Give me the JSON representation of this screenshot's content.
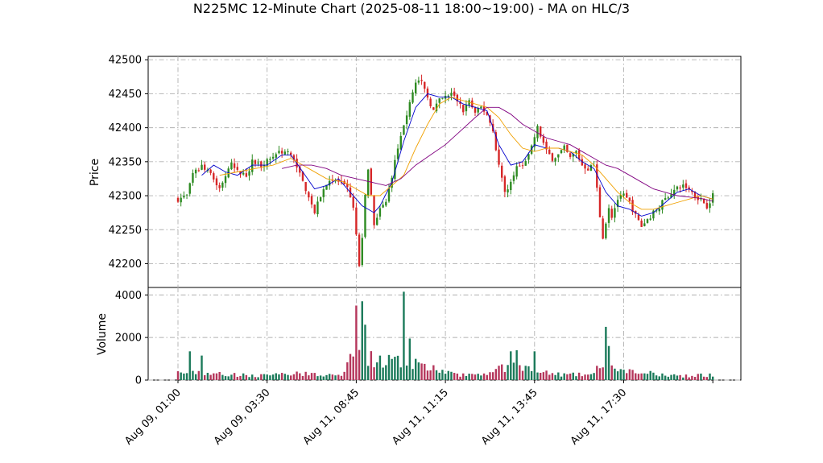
{
  "chart_data": {
    "type": "candlestick",
    "title": "N225MC 12-Minute Chart (2025-08-11 18:00~19:00) - MA on HLC/3",
    "price_ylabel": "Price",
    "volume_ylabel": "Volume",
    "price_ylim": [
      42165,
      42505
    ],
    "price_yticks": [
      42200,
      42250,
      42300,
      42350,
      42400,
      42450,
      42500
    ],
    "volume_ylim": [
      0,
      4350
    ],
    "volume_yticks": [
      0,
      2000,
      4000
    ],
    "x_ticks": [
      {
        "index": 0,
        "label": "Aug 09, 01:00"
      },
      {
        "index": 30,
        "label": "Aug 09, 03:30"
      },
      {
        "index": 60,
        "label": "Aug 11, 08:45"
      },
      {
        "index": 90,
        "label": "Aug 11, 11:15"
      },
      {
        "index": 120,
        "label": "Aug 11, 13:45"
      },
      {
        "index": 150,
        "label": "Aug 11, 17:30"
      }
    ],
    "n_bars": 180,
    "colors": {
      "up": "#2e8b22",
      "down": "#d62728",
      "vol_up": "#1b7a5a",
      "vol_down": "#b5365b",
      "ma_short": "#0000cc",
      "ma_mid": "#f0a000",
      "ma_long": "#800080",
      "grid": "#b0b0b0"
    },
    "close_path": [
      [
        0,
        42295
      ],
      [
        3,
        42300
      ],
      [
        5,
        42330
      ],
      [
        8,
        42345
      ],
      [
        10,
        42335
      ],
      [
        12,
        42325
      ],
      [
        14,
        42310
      ],
      [
        16,
        42330
      ],
      [
        18,
        42345
      ],
      [
        20,
        42335
      ],
      [
        23,
        42330
      ],
      [
        25,
        42350
      ],
      [
        28,
        42345
      ],
      [
        31,
        42355
      ],
      [
        34,
        42365
      ],
      [
        37,
        42365
      ],
      [
        40,
        42345
      ],
      [
        42,
        42320
      ],
      [
        44,
        42300
      ],
      [
        46,
        42275
      ],
      [
        48,
        42300
      ],
      [
        51,
        42325
      ],
      [
        54,
        42320
      ],
      [
        57,
        42310
      ],
      [
        58,
        42300
      ],
      [
        59,
        42280
      ],
      [
        60,
        42240
      ],
      [
        61,
        42195
      ],
      [
        62,
        42240
      ],
      [
        63,
        42300
      ],
      [
        64,
        42335
      ],
      [
        65,
        42300
      ],
      [
        66,
        42255
      ],
      [
        67,
        42265
      ],
      [
        68,
        42280
      ],
      [
        70,
        42290
      ],
      [
        72,
        42330
      ],
      [
        74,
        42370
      ],
      [
        76,
        42400
      ],
      [
        78,
        42440
      ],
      [
        80,
        42470
      ],
      [
        82,
        42465
      ],
      [
        84,
        42445
      ],
      [
        86,
        42425
      ],
      [
        88,
        42440
      ],
      [
        90,
        42445
      ],
      [
        92,
        42450
      ],
      [
        94,
        42440
      ],
      [
        96,
        42425
      ],
      [
        98,
        42440
      ],
      [
        100,
        42420
      ],
      [
        102,
        42430
      ],
      [
        104,
        42420
      ],
      [
        106,
        42395
      ],
      [
        108,
        42345
      ],
      [
        110,
        42305
      ],
      [
        112,
        42320
      ],
      [
        114,
        42345
      ],
      [
        116,
        42340
      ],
      [
        118,
        42360
      ],
      [
        121,
        42400
      ],
      [
        124,
        42365
      ],
      [
        126,
        42355
      ],
      [
        128,
        42360
      ],
      [
        130,
        42370
      ],
      [
        132,
        42355
      ],
      [
        134,
        42365
      ],
      [
        136,
        42345
      ],
      [
        138,
        42340
      ],
      [
        140,
        42345
      ],
      [
        141,
        42310
      ],
      [
        142,
        42270
      ],
      [
        143,
        42240
      ],
      [
        144,
        42260
      ],
      [
        145,
        42280
      ],
      [
        146,
        42270
      ],
      [
        148,
        42295
      ],
      [
        150,
        42300
      ],
      [
        152,
        42290
      ],
      [
        154,
        42270
      ],
      [
        156,
        42255
      ],
      [
        158,
        42265
      ],
      [
        160,
        42275
      ],
      [
        162,
        42285
      ],
      [
        164,
        42295
      ],
      [
        166,
        42305
      ],
      [
        168,
        42310
      ],
      [
        170,
        42315
      ],
      [
        172,
        42310
      ],
      [
        174,
        42300
      ],
      [
        176,
        42295
      ],
      [
        178,
        42285
      ],
      [
        180,
        42300
      ]
    ],
    "volume_path": [
      [
        0,
        350
      ],
      [
        10,
        300
      ],
      [
        20,
        250
      ],
      [
        30,
        200
      ],
      [
        40,
        300
      ],
      [
        50,
        250
      ],
      [
        55,
        200
      ],
      [
        60,
        1400
      ],
      [
        65,
        1000
      ],
      [
        70,
        900
      ],
      [
        80,
        800
      ],
      [
        85,
        600
      ],
      [
        90,
        350
      ],
      [
        95,
        250
      ],
      [
        100,
        250
      ],
      [
        105,
        400
      ],
      [
        110,
        600
      ],
      [
        115,
        600
      ],
      [
        120,
        400
      ],
      [
        125,
        300
      ],
      [
        130,
        250
      ],
      [
        140,
        250
      ],
      [
        142,
        800
      ],
      [
        145,
        700
      ],
      [
        150,
        400
      ],
      [
        160,
        300
      ],
      [
        170,
        200
      ],
      [
        180,
        250
      ]
    ],
    "volume_spikes": [
      [
        60,
        3500
      ],
      [
        62,
        3700
      ],
      [
        63,
        2600
      ],
      [
        76,
        4150
      ],
      [
        78,
        1950
      ],
      [
        114,
        1400
      ],
      [
        144,
        2500
      ],
      [
        145,
        1600
      ],
      [
        4,
        1350
      ],
      [
        8,
        1150
      ],
      [
        120,
        1350
      ],
      [
        112,
        1350
      ]
    ],
    "ma_short_path": [
      [
        8,
        42330
      ],
      [
        12,
        42345
      ],
      [
        16,
        42335
      ],
      [
        20,
        42330
      ],
      [
        25,
        42345
      ],
      [
        30,
        42345
      ],
      [
        35,
        42360
      ],
      [
        38,
        42360
      ],
      [
        42,
        42335
      ],
      [
        46,
        42310
      ],
      [
        50,
        42315
      ],
      [
        54,
        42325
      ],
      [
        58,
        42305
      ],
      [
        62,
        42285
      ],
      [
        66,
        42275
      ],
      [
        68,
        42285
      ],
      [
        72,
        42320
      ],
      [
        76,
        42380
      ],
      [
        80,
        42430
      ],
      [
        84,
        42450
      ],
      [
        88,
        42445
      ],
      [
        92,
        42445
      ],
      [
        96,
        42435
      ],
      [
        100,
        42430
      ],
      [
        104,
        42425
      ],
      [
        108,
        42375
      ],
      [
        112,
        42345
      ],
      [
        116,
        42350
      ],
      [
        120,
        42375
      ],
      [
        124,
        42370
      ],
      [
        128,
        42370
      ],
      [
        132,
        42365
      ],
      [
        136,
        42350
      ],
      [
        140,
        42340
      ],
      [
        144,
        42305
      ],
      [
        148,
        42285
      ],
      [
        152,
        42280
      ],
      [
        156,
        42270
      ],
      [
        160,
        42275
      ],
      [
        164,
        42290
      ],
      [
        168,
        42305
      ],
      [
        172,
        42310
      ],
      [
        176,
        42300
      ],
      [
        180,
        42295
      ]
    ],
    "ma_mid_path": [
      [
        14,
        42330
      ],
      [
        20,
        42335
      ],
      [
        26,
        42340
      ],
      [
        32,
        42345
      ],
      [
        38,
        42355
      ],
      [
        44,
        42340
      ],
      [
        50,
        42325
      ],
      [
        56,
        42320
      ],
      [
        60,
        42310
      ],
      [
        64,
        42300
      ],
      [
        68,
        42300
      ],
      [
        72,
        42315
      ],
      [
        76,
        42330
      ],
      [
        80,
        42370
      ],
      [
        84,
        42405
      ],
      [
        88,
        42435
      ],
      [
        92,
        42445
      ],
      [
        96,
        42440
      ],
      [
        100,
        42435
      ],
      [
        104,
        42430
      ],
      [
        108,
        42415
      ],
      [
        112,
        42390
      ],
      [
        116,
        42370
      ],
      [
        120,
        42365
      ],
      [
        124,
        42370
      ],
      [
        128,
        42370
      ],
      [
        132,
        42365
      ],
      [
        136,
        42360
      ],
      [
        140,
        42345
      ],
      [
        144,
        42325
      ],
      [
        148,
        42305
      ],
      [
        152,
        42290
      ],
      [
        156,
        42280
      ],
      [
        160,
        42280
      ],
      [
        164,
        42285
      ],
      [
        168,
        42290
      ],
      [
        172,
        42295
      ],
      [
        176,
        42300
      ],
      [
        180,
        42295
      ]
    ],
    "ma_long_path": [
      [
        35,
        42340
      ],
      [
        40,
        42345
      ],
      [
        45,
        42345
      ],
      [
        50,
        42340
      ],
      [
        55,
        42330
      ],
      [
        60,
        42325
      ],
      [
        65,
        42320
      ],
      [
        70,
        42315
      ],
      [
        75,
        42325
      ],
      [
        80,
        42345
      ],
      [
        85,
        42360
      ],
      [
        90,
        42375
      ],
      [
        95,
        42395
      ],
      [
        100,
        42415
      ],
      [
        104,
        42430
      ],
      [
        108,
        42430
      ],
      [
        112,
        42420
      ],
      [
        116,
        42405
      ],
      [
        120,
        42395
      ],
      [
        124,
        42385
      ],
      [
        128,
        42380
      ],
      [
        132,
        42375
      ],
      [
        136,
        42365
      ],
      [
        140,
        42355
      ],
      [
        144,
        42345
      ],
      [
        148,
        42340
      ],
      [
        152,
        42330
      ],
      [
        156,
        42320
      ],
      [
        160,
        42310
      ],
      [
        164,
        42305
      ],
      [
        168,
        42300
      ],
      [
        172,
        42298
      ],
      [
        176,
        42296
      ],
      [
        180,
        42292
      ]
    ]
  }
}
